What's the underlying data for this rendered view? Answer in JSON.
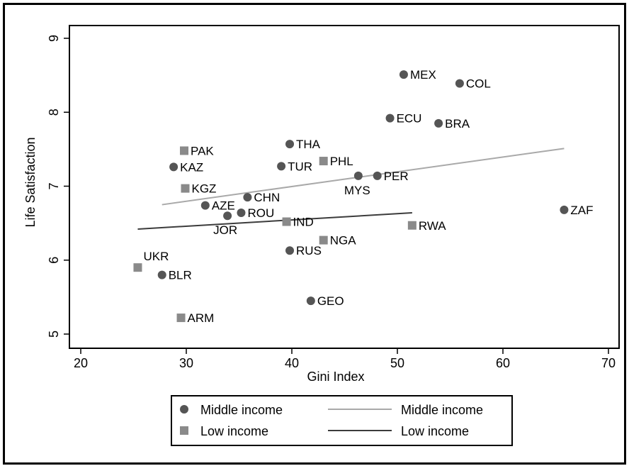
{
  "chart_data": {
    "type": "scatter",
    "xlabel": "Gini Index",
    "ylabel": "Life Satisfaction",
    "xlim": [
      20,
      70
    ],
    "ylim": [
      5,
      9
    ],
    "xticks": [
      20,
      30,
      40,
      50,
      60,
      70
    ],
    "yticks": [
      5,
      6,
      7,
      8,
      9
    ],
    "grid": false,
    "legend_position": "bottom",
    "colors": {
      "middle_income": "#555555",
      "low_income": "#8a8a8a",
      "middle_fit": "#a9a9a9",
      "low_fit": "#3c3c3c"
    },
    "series": [
      {
        "name": "Middle income",
        "marker": "circle",
        "points": [
          {
            "label": "MEX",
            "x": 50.6,
            "y": 8.51
          },
          {
            "label": "COL",
            "x": 55.9,
            "y": 8.39
          },
          {
            "label": "ECU",
            "x": 49.3,
            "y": 7.92
          },
          {
            "label": "BRA",
            "x": 53.9,
            "y": 7.85
          },
          {
            "label": "THA",
            "x": 39.8,
            "y": 7.57
          },
          {
            "label": "TUR",
            "x": 39.0,
            "y": 7.27
          },
          {
            "label": "KAZ",
            "x": 28.8,
            "y": 7.26
          },
          {
            "label": "MYS",
            "x": 46.3,
            "y": 7.14
          },
          {
            "label": "PER",
            "x": 48.1,
            "y": 7.14
          },
          {
            "label": "CHN",
            "x": 35.8,
            "y": 6.85
          },
          {
            "label": "AZE",
            "x": 31.8,
            "y": 6.74
          },
          {
            "label": "ROU",
            "x": 35.2,
            "y": 6.64
          },
          {
            "label": "JOR",
            "x": 33.9,
            "y": 6.6
          },
          {
            "label": "ZAF",
            "x": 65.8,
            "y": 6.68
          },
          {
            "label": "RUS",
            "x": 39.8,
            "y": 6.13
          },
          {
            "label": "BLR",
            "x": 27.7,
            "y": 5.8
          },
          {
            "label": "GEO",
            "x": 41.8,
            "y": 5.45
          }
        ]
      },
      {
        "name": "Low income",
        "marker": "square",
        "points": [
          {
            "label": "PAK",
            "x": 29.8,
            "y": 7.48
          },
          {
            "label": "PHL",
            "x": 43.0,
            "y": 7.34
          },
          {
            "label": "KGZ",
            "x": 29.9,
            "y": 6.97
          },
          {
            "label": "IND",
            "x": 39.5,
            "y": 6.52
          },
          {
            "label": "RWA",
            "x": 51.4,
            "y": 6.47
          },
          {
            "label": "NGA",
            "x": 43.0,
            "y": 6.27
          },
          {
            "label": "UKR",
            "x": 25.4,
            "y": 5.9
          },
          {
            "label": "ARM",
            "x": 29.5,
            "y": 5.22
          }
        ]
      }
    ],
    "fit_lines": [
      {
        "name": "Middle income",
        "x": [
          27.7,
          65.8
        ],
        "y": [
          6.75,
          7.51
        ]
      },
      {
        "name": "Low income",
        "x": [
          25.4,
          51.4
        ],
        "y": [
          6.42,
          6.64
        ]
      }
    ],
    "legend": [
      {
        "marker": "circle",
        "text": "Middle income"
      },
      {
        "marker": "line-light",
        "text": "Middle income"
      },
      {
        "marker": "square",
        "text": "Low income"
      },
      {
        "marker": "line-dark",
        "text": "Low income"
      }
    ]
  }
}
